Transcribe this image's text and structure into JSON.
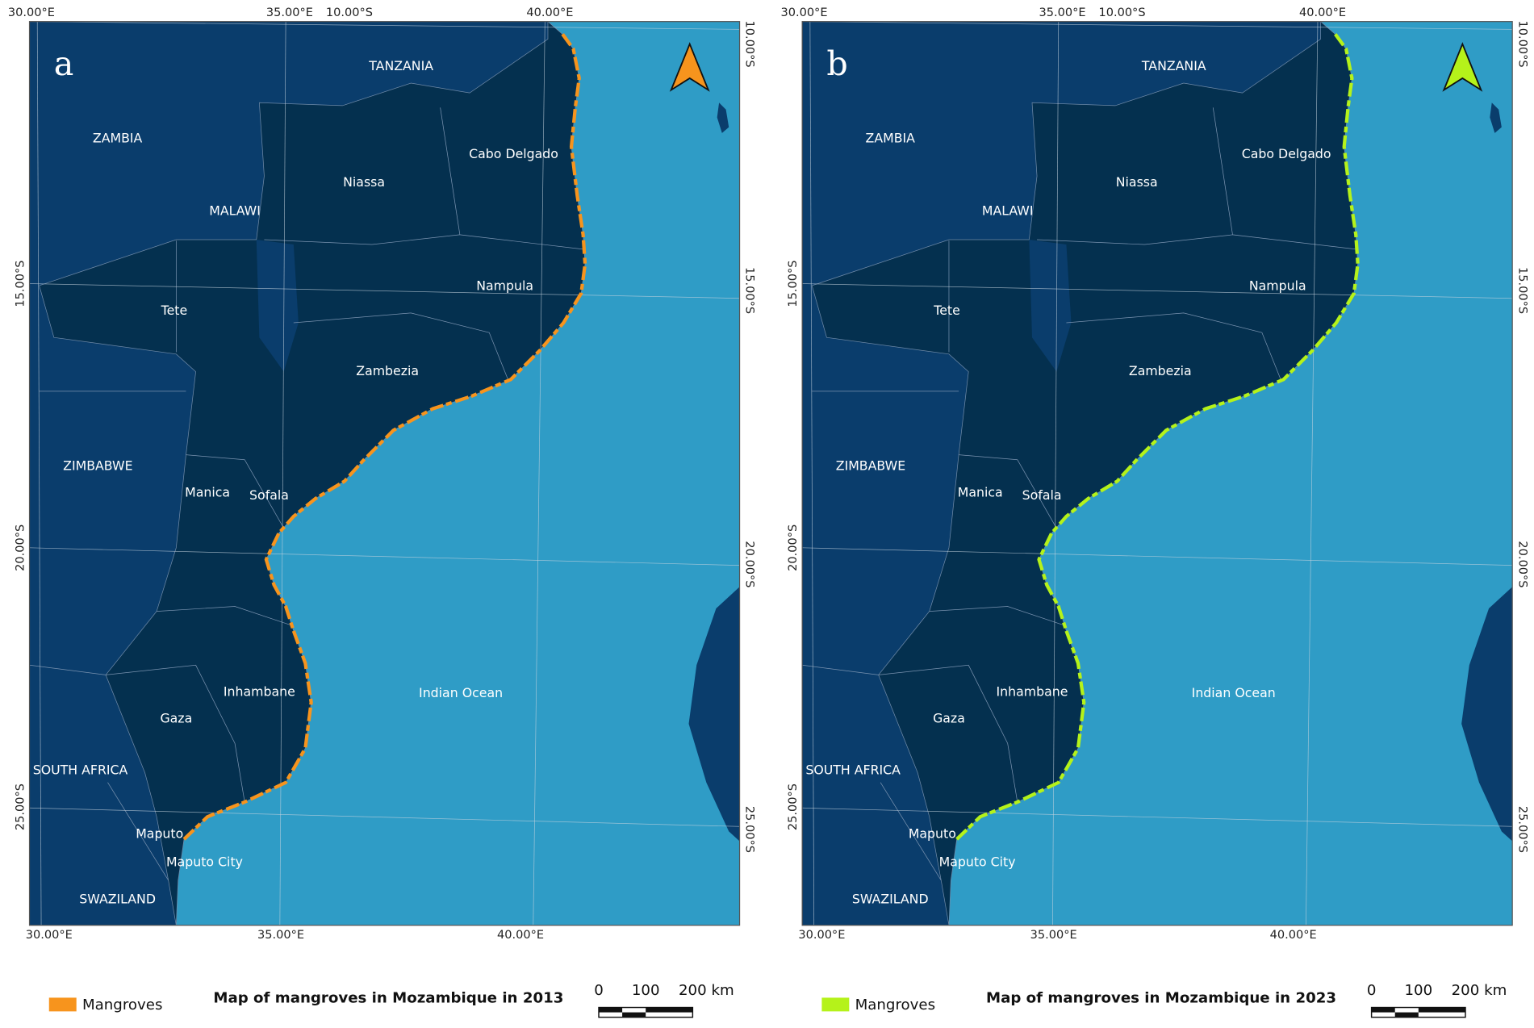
{
  "panels": [
    {
      "label": "a",
      "title": "Map of mangroves in Mozambique in 2013",
      "legend": "Mangroves",
      "mangrove_color": "#f7941d",
      "top_labels": [
        "30.00°E",
        "35.00°E",
        "10.00°S",
        "40.00°E"
      ],
      "right_labels": [
        "10.00°S",
        "15.00°S",
        "20.00°S",
        "25.00°S"
      ],
      "left_labels": [
        "15.00°S",
        "20.00°S",
        "25.00°S"
      ],
      "bottom_labels": [
        "30.00°E",
        "35.00°E",
        "40.00°E"
      ],
      "places": [
        "TANZANIA",
        "ZAMBIA",
        "MALAWI",
        "Niassa",
        "Cabo Delgado",
        "Nampula",
        "Tete",
        "Zambezia",
        "ZIMBABWE",
        "Manica",
        "Sofala",
        "Inhambane",
        "Gaza",
        "Indian Ocean",
        "SOUTH AFRICA",
        "Maputo",
        "Maputo City",
        "SWAZILAND"
      ],
      "scale": [
        "0",
        "100",
        "200 km"
      ]
    },
    {
      "label": "b",
      "title": "Map of mangroves in Mozambique in 2023",
      "legend": "Mangroves",
      "mangrove_color": "#b5f21a",
      "top_labels": [
        "30.00°E",
        "35.00°E",
        "10.00°S",
        "40.00°E"
      ],
      "right_labels": [
        "10.00°S",
        "15.00°S",
        "20.00°S",
        "25.00°S"
      ],
      "left_labels": [
        "15.00°S",
        "20.00°S",
        "25.00°S"
      ],
      "bottom_labels": [
        "30.00°E",
        "35.00°E",
        "40.00°E"
      ],
      "places": [
        "TANZANIA",
        "ZAMBIA",
        "MALAWI",
        "Niassa",
        "Cabo Delgado",
        "Nampula",
        "Tete",
        "Zambezia",
        "ZIMBABWE",
        "Manica",
        "Sofala",
        "Inhambane",
        "Gaza",
        "Indian Ocean",
        "SOUTH AFRICA",
        "Maputo",
        "Maputo City",
        "SWAZILAND"
      ],
      "scale": [
        "0",
        "100",
        "200 km"
      ]
    }
  ]
}
